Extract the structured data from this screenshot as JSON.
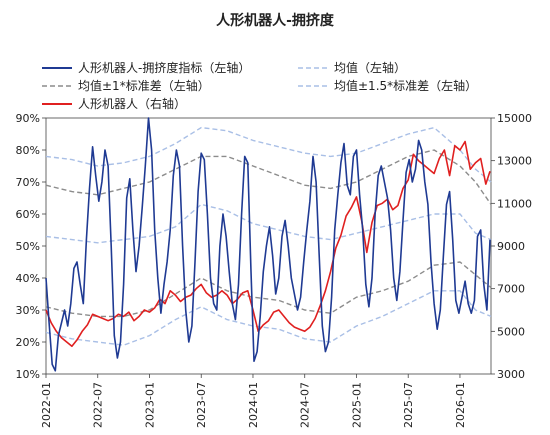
{
  "chart_data": {
    "type": "line",
    "title": "人形机器人-拥挤度",
    "x_ticks": [
      "2022-01",
      "2022-07",
      "2023-01",
      "2023-07",
      "2024-01",
      "2024-07",
      "2025-01",
      "2025-07",
      "2026-01"
    ],
    "y_left": {
      "ticks": [
        "10%",
        "20%",
        "30%",
        "40%",
        "50%",
        "60%",
        "70%",
        "80%",
        "90%"
      ],
      "range": [
        0.1,
        0.9
      ]
    },
    "y_right": {
      "ticks": [
        "3000",
        "5000",
        "7000",
        "9000",
        "11000",
        "13000",
        "15000"
      ],
      "range": [
        3000,
        15000
      ]
    },
    "legend": [
      {
        "key": "crowding",
        "label": "人形机器人-拥挤度指标（左轴）",
        "color": "#1f3a93",
        "dash": "solid"
      },
      {
        "key": "mean",
        "label": "均值（左轴）",
        "color": "#a9bfe6",
        "dash": "dashed"
      },
      {
        "key": "band1",
        "label": "均值±1*标准差（左轴）",
        "color": "#8c8c8c",
        "dash": "dashed"
      },
      {
        "key": "band15",
        "label": "均值±1.5*标准差（左轴）",
        "color": "#a9bfe6",
        "dash": "dashed"
      },
      {
        "key": "index",
        "label": "人形机器人（右轴）",
        "color": "#e02020",
        "dash": "solid"
      }
    ],
    "x_range": [
      2022.0,
      2026.3
    ],
    "series": {
      "crowding": {
        "axis": "left",
        "x": [
          2022.0,
          2022.03,
          2022.06,
          2022.09,
          2022.12,
          2022.15,
          2022.18,
          2022.21,
          2022.24,
          2022.27,
          2022.3,
          2022.33,
          2022.36,
          2022.39,
          2022.42,
          2022.45,
          2022.48,
          2022.51,
          2022.54,
          2022.57,
          2022.6,
          2022.63,
          2022.66,
          2022.69,
          2022.72,
          2022.75,
          2022.78,
          2022.81,
          2022.84,
          2022.87,
          2022.9,
          2022.93,
          2022.96,
          2022.99,
          2023.02,
          2023.05,
          2023.08,
          2023.11,
          2023.14,
          2023.17,
          2023.2,
          2023.23,
          2023.26,
          2023.29,
          2023.32,
          2023.35,
          2023.38,
          2023.41,
          2023.44,
          2023.47,
          2023.5,
          2023.53,
          2023.56,
          2023.59,
          2023.62,
          2023.65,
          2023.68,
          2023.71,
          2023.74,
          2023.77,
          2023.8,
          2023.83,
          2023.86,
          2023.89,
          2023.92,
          2023.95,
          2023.98,
          2024.01,
          2024.04,
          2024.07,
          2024.1,
          2024.13,
          2024.16,
          2024.19,
          2024.22,
          2024.25,
          2024.28,
          2024.31,
          2024.34,
          2024.37,
          2024.4,
          2024.43,
          2024.46,
          2024.49,
          2024.52,
          2024.55,
          2024.58,
          2024.61,
          2024.64,
          2024.67,
          2024.7,
          2024.73,
          2024.76,
          2024.79,
          2024.82,
          2024.85,
          2024.88,
          2024.91,
          2024.94,
          2024.97,
          2025.0,
          2025.03,
          2025.06,
          2025.09,
          2025.12,
          2025.15,
          2025.18,
          2025.21,
          2025.24,
          2025.27,
          2025.3,
          2025.33,
          2025.36,
          2025.39,
          2025.42,
          2025.45,
          2025.48,
          2025.51,
          2025.54,
          2025.57,
          2025.6,
          2025.63,
          2025.66,
          2025.69,
          2025.72,
          2025.75,
          2025.78,
          2025.81,
          2025.84,
          2025.87,
          2025.9,
          2025.93,
          2025.96,
          2025.99,
          2026.02,
          2026.05,
          2026.08,
          2026.11,
          2026.14,
          2026.17,
          2026.2,
          2026.23,
          2026.26,
          2026.29
        ],
        "y": [
          0.4,
          0.26,
          0.13,
          0.11,
          0.22,
          0.26,
          0.3,
          0.25,
          0.32,
          0.43,
          0.45,
          0.38,
          0.32,
          0.52,
          0.68,
          0.81,
          0.72,
          0.64,
          0.7,
          0.8,
          0.75,
          0.5,
          0.22,
          0.15,
          0.2,
          0.38,
          0.65,
          0.71,
          0.55,
          0.42,
          0.5,
          0.62,
          0.75,
          0.9,
          0.8,
          0.55,
          0.4,
          0.29,
          0.38,
          0.45,
          0.55,
          0.72,
          0.8,
          0.75,
          0.5,
          0.3,
          0.2,
          0.25,
          0.45,
          0.67,
          0.79,
          0.77,
          0.6,
          0.4,
          0.32,
          0.3,
          0.5,
          0.6,
          0.53,
          0.42,
          0.32,
          0.27,
          0.38,
          0.6,
          0.78,
          0.76,
          0.43,
          0.14,
          0.17,
          0.28,
          0.42,
          0.5,
          0.56,
          0.47,
          0.35,
          0.4,
          0.53,
          0.58,
          0.5,
          0.4,
          0.35,
          0.3,
          0.34,
          0.45,
          0.55,
          0.64,
          0.78,
          0.7,
          0.47,
          0.25,
          0.17,
          0.2,
          0.34,
          0.55,
          0.66,
          0.76,
          0.82,
          0.69,
          0.66,
          0.78,
          0.8,
          0.66,
          0.55,
          0.38,
          0.31,
          0.4,
          0.6,
          0.72,
          0.75,
          0.7,
          0.65,
          0.55,
          0.4,
          0.33,
          0.42,
          0.58,
          0.73,
          0.77,
          0.7,
          0.74,
          0.83,
          0.8,
          0.7,
          0.63,
          0.45,
          0.32,
          0.24,
          0.3,
          0.47,
          0.63,
          0.67,
          0.52,
          0.33,
          0.29,
          0.34,
          0.39,
          0.32,
          0.29,
          0.33,
          0.53,
          0.55,
          0.38,
          0.3,
          0.52
        ]
      },
      "mean": {
        "axis": "left",
        "x": [
          2022.0,
          2022.25,
          2022.5,
          2022.75,
          2023.0,
          2023.25,
          2023.5,
          2023.75,
          2024.0,
          2024.25,
          2024.5,
          2024.75,
          2025.0,
          2025.25,
          2025.5,
          2025.75,
          2026.0,
          2026.15,
          2026.3
        ],
        "y": [
          0.53,
          0.52,
          0.51,
          0.52,
          0.53,
          0.56,
          0.63,
          0.61,
          0.57,
          0.55,
          0.53,
          0.52,
          0.54,
          0.56,
          0.58,
          0.6,
          0.6,
          0.54,
          0.52
        ]
      },
      "band1_upper": {
        "axis": "left",
        "x": [
          2022.0,
          2022.25,
          2022.5,
          2022.75,
          2023.0,
          2023.25,
          2023.5,
          2023.75,
          2024.0,
          2024.25,
          2024.5,
          2024.75,
          2025.0,
          2025.25,
          2025.5,
          2025.75,
          2026.0,
          2026.15,
          2026.3
        ],
        "y": [
          0.69,
          0.67,
          0.66,
          0.68,
          0.7,
          0.74,
          0.78,
          0.78,
          0.75,
          0.72,
          0.69,
          0.68,
          0.7,
          0.74,
          0.78,
          0.8,
          0.75,
          0.7,
          0.63
        ]
      },
      "band1_lower": {
        "axis": "left",
        "x": [
          2022.0,
          2022.25,
          2022.5,
          2022.75,
          2023.0,
          2023.25,
          2023.5,
          2023.75,
          2024.0,
          2024.25,
          2024.5,
          2024.75,
          2025.0,
          2025.25,
          2025.5,
          2025.75,
          2026.0,
          2026.15,
          2026.3
        ],
        "y": [
          0.31,
          0.29,
          0.28,
          0.28,
          0.3,
          0.35,
          0.4,
          0.36,
          0.34,
          0.33,
          0.3,
          0.29,
          0.34,
          0.36,
          0.39,
          0.44,
          0.45,
          0.41,
          0.37
        ]
      },
      "band15_upper": {
        "axis": "left",
        "x": [
          2022.0,
          2022.25,
          2022.5,
          2022.75,
          2023.0,
          2023.25,
          2023.5,
          2023.75,
          2024.0,
          2024.25,
          2024.5,
          2024.75,
          2025.0,
          2025.25,
          2025.5,
          2025.75,
          2026.0,
          2026.15,
          2026.3
        ],
        "y": [
          0.78,
          0.77,
          0.75,
          0.76,
          0.78,
          0.82,
          0.87,
          0.86,
          0.83,
          0.81,
          0.79,
          0.78,
          0.79,
          0.82,
          0.85,
          0.87,
          0.8,
          0.74,
          0.7
        ]
      },
      "band15_lower": {
        "axis": "left",
        "x": [
          2022.0,
          2022.25,
          2022.5,
          2022.75,
          2023.0,
          2023.25,
          2023.5,
          2023.75,
          2024.0,
          2024.25,
          2024.5,
          2024.75,
          2025.0,
          2025.25,
          2025.5,
          2025.75,
          2026.0,
          2026.15,
          2026.3
        ],
        "y": [
          0.23,
          0.21,
          0.2,
          0.19,
          0.22,
          0.27,
          0.31,
          0.27,
          0.25,
          0.24,
          0.21,
          0.2,
          0.25,
          0.28,
          0.32,
          0.36,
          0.36,
          0.3,
          0.28
        ]
      },
      "index": {
        "axis": "right",
        "x": [
          2022.0,
          2022.05,
          2022.1,
          2022.15,
          2022.2,
          2022.25,
          2022.3,
          2022.35,
          2022.4,
          2022.45,
          2022.5,
          2022.55,
          2022.6,
          2022.65,
          2022.7,
          2022.75,
          2022.8,
          2022.85,
          2022.9,
          2022.95,
          2023.0,
          2023.05,
          2023.1,
          2023.15,
          2023.2,
          2023.25,
          2023.3,
          2023.35,
          2023.4,
          2023.45,
          2023.5,
          2023.55,
          2023.6,
          2023.65,
          2023.7,
          2023.75,
          2023.8,
          2023.85,
          2023.9,
          2023.95,
          2024.0,
          2024.05,
          2024.1,
          2024.15,
          2024.2,
          2024.25,
          2024.3,
          2024.35,
          2024.4,
          2024.45,
          2024.5,
          2024.55,
          2024.6,
          2024.65,
          2024.7,
          2024.75,
          2024.8,
          2024.85,
          2024.9,
          2024.95,
          2025.0,
          2025.05,
          2025.1,
          2025.15,
          2025.2,
          2025.25,
          2025.3,
          2025.35,
          2025.4,
          2025.45,
          2025.5,
          2025.55,
          2025.6,
          2025.65,
          2025.7,
          2025.75,
          2025.8,
          2025.85,
          2025.9,
          2025.95,
          2026.0,
          2026.05,
          2026.1,
          2026.15,
          2026.2,
          2026.25,
          2026.29
        ],
        "y": [
          6000,
          5400,
          5000,
          4700,
          4500,
          4300,
          4600,
          5000,
          5300,
          5800,
          5700,
          5600,
          5500,
          5600,
          5800,
          5700,
          5900,
          5500,
          5700,
          6000,
          5900,
          6100,
          6500,
          6300,
          6900,
          6700,
          6400,
          6600,
          6700,
          7000,
          7200,
          6800,
          6600,
          6700,
          6900,
          6700,
          6300,
          6500,
          6800,
          6900,
          6000,
          5000,
          5300,
          5500,
          5900,
          6000,
          5700,
          5400,
          5200,
          5100,
          5000,
          5200,
          5600,
          6200,
          6900,
          7800,
          8900,
          9500,
          10400,
          10800,
          11300,
          10200,
          8700,
          10100,
          10900,
          11000,
          11200,
          10700,
          10900,
          11700,
          12100,
          13300,
          13000,
          12800,
          12600,
          12400,
          13100,
          13500,
          12300,
          13700,
          13500,
          13900,
          12600,
          12900,
          13100,
          11900,
          12500
        ]
      }
    }
  }
}
